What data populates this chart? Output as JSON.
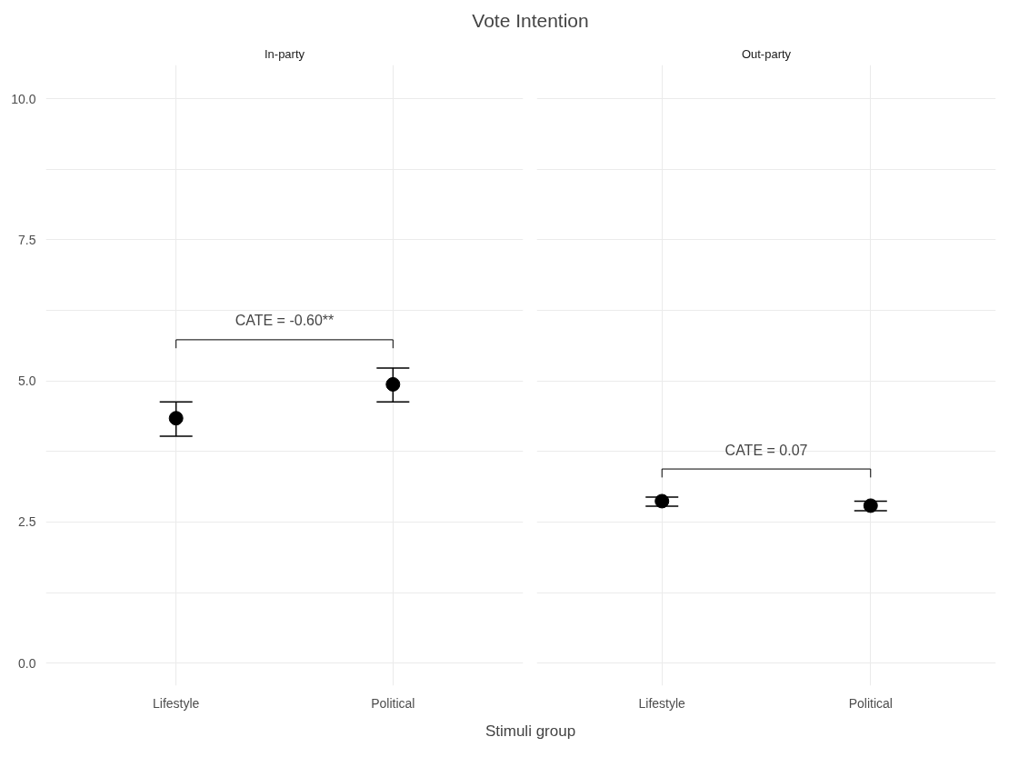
{
  "chart_data": [
    {
      "type": "scatter",
      "title": "Vote Intention",
      "subtitle": "In-party",
      "xlabel": "Stimuli group",
      "categories": [
        "Lifestyle",
        "Political"
      ],
      "values": [
        4.34,
        4.94
      ],
      "errors": [
        [
          4.02,
          4.63
        ],
        [
          4.63,
          5.23
        ]
      ],
      "color": "#000000",
      "marker": "circle",
      "ylim": [
        -0.4,
        10.6
      ],
      "yticks": [
        {
          "value": 0,
          "label": "0.0"
        },
        2.5,
        {
          "value": 5,
          "label": "5.0"
        },
        7.5,
        {
          "value": 10,
          "label": "10.0"
        }
      ],
      "grid": true,
      "annotations": [
        "CATE = -0.60**"
      ]
    },
    {
      "type": "scatter",
      "subtitle": "Out-party",
      "categories": [
        "Lifestyle",
        "Political"
      ],
      "values": [
        2.87,
        2.79
      ],
      "errors": [
        [
          2.78,
          2.94
        ],
        [
          2.7,
          2.87
        ]
      ],
      "color": "#000000",
      "marker": "circle",
      "ylim": [
        -0.4,
        10.6
      ],
      "yticks": [
        0,
        2.5,
        5,
        7.5,
        10
      ],
      "grid": true,
      "tick_labels": "x",
      "annotations": [
        "CATE = 0.07"
      ]
    }
  ]
}
